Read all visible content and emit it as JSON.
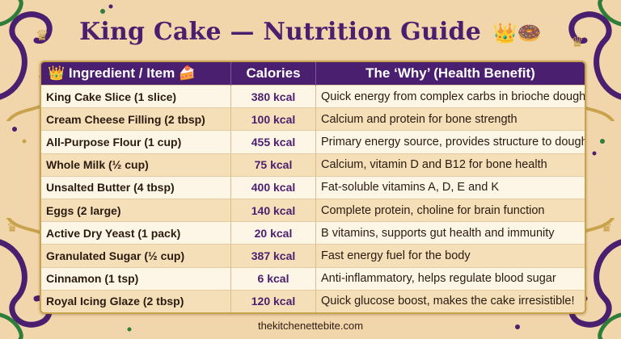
{
  "title": "King Cake — Nutrition Guide",
  "title_emoji": "👑🍩",
  "table": {
    "headers": [
      "👑 Ingredient / Item 🍰",
      "Calories",
      "The ‘Why’ (Health Benefit)"
    ],
    "rows": [
      {
        "item": "King Cake Slice (1 slice)",
        "calories": "380 kcal",
        "why": "Quick energy from complex carbs in brioche dough"
      },
      {
        "item": "Cream Cheese Filling (2 tbsp)",
        "calories": "100 kcal",
        "why": "Calcium and protein for bone strength"
      },
      {
        "item": "All-Purpose Flour (1 cup)",
        "calories": "455 kcal",
        "why": "Primary energy source, provides structure to dough"
      },
      {
        "item": "Whole Milk (½ cup)",
        "calories": "75 kcal",
        "why": "Calcium, vitamin D and B12 for bone health"
      },
      {
        "item": "Unsalted Butter (4 tbsp)",
        "calories": "400 kcal",
        "why": "Fat-soluble vitamins A, D, E and K"
      },
      {
        "item": "Eggs (2 large)",
        "calories": "140 kcal",
        "why": "Complete protein, choline for brain function"
      },
      {
        "item": "Active Dry Yeast (1 pack)",
        "calories": "20 kcal",
        "why": "B vitamins, supports gut health and immunity"
      },
      {
        "item": "Granulated Sugar (½ cup)",
        "calories": "387 kcal",
        "why": "Fast energy fuel for the body"
      },
      {
        "item": "Cinnamon (1 tsp)",
        "calories": "6 kcal",
        "why": "Anti-inflammatory, helps regulate blood sugar"
      },
      {
        "item": "Royal Icing Glaze (2 tbsp)",
        "calories": "120 kcal",
        "why": "Quick glucose boost, makes the cake irresistible!"
      }
    ]
  },
  "footer": "thekitchenettebite.com",
  "colors": {
    "background": "#f2d6ab",
    "header": "#4b1f6f",
    "accent_gold": "#c9a34c",
    "mardi_gras_green": "#2f7d3a"
  },
  "decorations": [
    "crown-icon",
    "swirl-ornament",
    "bead-dots"
  ]
}
